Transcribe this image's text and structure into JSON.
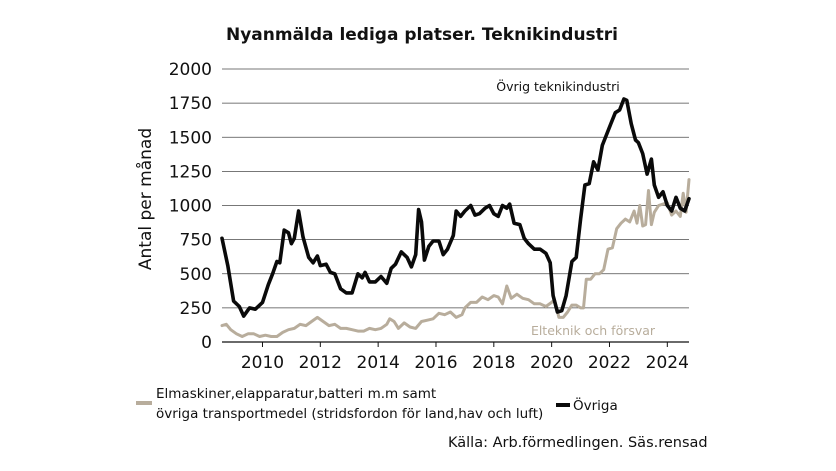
{
  "chart_data": {
    "type": "line",
    "title": "Nyanmälda lediga platser. Teknikindustri",
    "ylabel": "Antal per månad",
    "xlabel": "",
    "ylim": [
      0,
      2000
    ],
    "xlim": [
      2008.6,
      2024.75
    ],
    "yticks": [
      0,
      250,
      500,
      750,
      1000,
      1250,
      1500,
      1750,
      2000
    ],
    "xticks": [
      2010,
      2012,
      2014,
      2016,
      2018,
      2020,
      2022,
      2024
    ],
    "grid": "horizontal",
    "colors": {
      "ovriga": "#0a0a0a",
      "elteknik": "#b8ad9c"
    },
    "annotations": {
      "ovriga": "Övrig teknikindustri",
      "elteknik": "Elteknik och försvar"
    },
    "legend": {
      "elteknik_line1": "Elmaskiner,elapparatur,batteri m.m samt",
      "elteknik_line2": "övriga transportmedel (stridsfordon för land,hav och luft)",
      "ovriga": "Övriga"
    },
    "source": "Källa: Arb.förmedlingen. Säs.rensad",
    "series": [
      {
        "key": "ovriga",
        "points": [
          [
            2008.6,
            760
          ],
          [
            2008.8,
            560
          ],
          [
            2009.0,
            300
          ],
          [
            2009.2,
            260
          ],
          [
            2009.35,
            190
          ],
          [
            2009.55,
            250
          ],
          [
            2009.75,
            240
          ],
          [
            2010.0,
            290
          ],
          [
            2010.2,
            420
          ],
          [
            2010.35,
            500
          ],
          [
            2010.5,
            590
          ],
          [
            2010.6,
            580
          ],
          [
            2010.75,
            820
          ],
          [
            2010.9,
            800
          ],
          [
            2011.0,
            720
          ],
          [
            2011.1,
            760
          ],
          [
            2011.25,
            960
          ],
          [
            2011.4,
            770
          ],
          [
            2011.6,
            620
          ],
          [
            2011.75,
            580
          ],
          [
            2011.9,
            630
          ],
          [
            2012.0,
            560
          ],
          [
            2012.2,
            570
          ],
          [
            2012.35,
            510
          ],
          [
            2012.5,
            500
          ],
          [
            2012.7,
            390
          ],
          [
            2012.9,
            360
          ],
          [
            2013.1,
            360
          ],
          [
            2013.3,
            500
          ],
          [
            2013.45,
            470
          ],
          [
            2013.55,
            510
          ],
          [
            2013.7,
            440
          ],
          [
            2013.9,
            440
          ],
          [
            2014.1,
            480
          ],
          [
            2014.3,
            430
          ],
          [
            2014.45,
            540
          ],
          [
            2014.6,
            570
          ],
          [
            2014.8,
            660
          ],
          [
            2015.0,
            620
          ],
          [
            2015.15,
            550
          ],
          [
            2015.3,
            640
          ],
          [
            2015.4,
            970
          ],
          [
            2015.5,
            880
          ],
          [
            2015.6,
            600
          ],
          [
            2015.75,
            700
          ],
          [
            2015.9,
            740
          ],
          [
            2016.1,
            740
          ],
          [
            2016.25,
            640
          ],
          [
            2016.4,
            680
          ],
          [
            2016.6,
            780
          ],
          [
            2016.7,
            960
          ],
          [
            2016.85,
            920
          ],
          [
            2017.0,
            960
          ],
          [
            2017.2,
            1000
          ],
          [
            2017.35,
            930
          ],
          [
            2017.5,
            940
          ],
          [
            2017.7,
            980
          ],
          [
            2017.85,
            1000
          ],
          [
            2018.0,
            940
          ],
          [
            2018.15,
            920
          ],
          [
            2018.3,
            1000
          ],
          [
            2018.45,
            980
          ],
          [
            2018.55,
            1010
          ],
          [
            2018.7,
            870
          ],
          [
            2018.9,
            860
          ],
          [
            2019.05,
            760
          ],
          [
            2019.2,
            720
          ],
          [
            2019.4,
            680
          ],
          [
            2019.6,
            680
          ],
          [
            2019.8,
            650
          ],
          [
            2019.95,
            580
          ],
          [
            2020.05,
            340
          ],
          [
            2020.2,
            220
          ],
          [
            2020.35,
            230
          ],
          [
            2020.5,
            340
          ],
          [
            2020.7,
            590
          ],
          [
            2020.85,
            620
          ],
          [
            2021.0,
            900
          ],
          [
            2021.15,
            1150
          ],
          [
            2021.3,
            1160
          ],
          [
            2021.45,
            1320
          ],
          [
            2021.6,
            1260
          ],
          [
            2021.75,
            1440
          ],
          [
            2021.9,
            1520
          ],
          [
            2022.05,
            1600
          ],
          [
            2022.2,
            1680
          ],
          [
            2022.35,
            1700
          ],
          [
            2022.5,
            1780
          ],
          [
            2022.6,
            1770
          ],
          [
            2022.75,
            1600
          ],
          [
            2022.9,
            1480
          ],
          [
            2023.0,
            1460
          ],
          [
            2023.15,
            1380
          ],
          [
            2023.3,
            1230
          ],
          [
            2023.45,
            1340
          ],
          [
            2023.55,
            1150
          ],
          [
            2023.7,
            1060
          ],
          [
            2023.85,
            1100
          ],
          [
            2024.0,
            1000
          ],
          [
            2024.15,
            960
          ],
          [
            2024.3,
            1060
          ],
          [
            2024.45,
            980
          ],
          [
            2024.6,
            960
          ],
          [
            2024.75,
            1050
          ]
        ]
      },
      {
        "key": "elteknik",
        "points": [
          [
            2008.6,
            120
          ],
          [
            2008.75,
            130
          ],
          [
            2008.9,
            90
          ],
          [
            2009.1,
            60
          ],
          [
            2009.3,
            40
          ],
          [
            2009.5,
            60
          ],
          [
            2009.7,
            60
          ],
          [
            2009.9,
            40
          ],
          [
            2010.1,
            50
          ],
          [
            2010.3,
            40
          ],
          [
            2010.5,
            40
          ],
          [
            2010.7,
            70
          ],
          [
            2010.9,
            90
          ],
          [
            2011.1,
            100
          ],
          [
            2011.3,
            130
          ],
          [
            2011.5,
            120
          ],
          [
            2011.7,
            150
          ],
          [
            2011.9,
            180
          ],
          [
            2012.1,
            150
          ],
          [
            2012.3,
            120
          ],
          [
            2012.5,
            130
          ],
          [
            2012.7,
            100
          ],
          [
            2012.9,
            100
          ],
          [
            2013.1,
            90
          ],
          [
            2013.3,
            80
          ],
          [
            2013.5,
            80
          ],
          [
            2013.7,
            100
          ],
          [
            2013.9,
            90
          ],
          [
            2014.1,
            100
          ],
          [
            2014.3,
            130
          ],
          [
            2014.4,
            170
          ],
          [
            2014.55,
            150
          ],
          [
            2014.7,
            100
          ],
          [
            2014.9,
            140
          ],
          [
            2015.1,
            110
          ],
          [
            2015.3,
            100
          ],
          [
            2015.5,
            150
          ],
          [
            2015.7,
            160
          ],
          [
            2015.9,
            170
          ],
          [
            2016.1,
            210
          ],
          [
            2016.3,
            200
          ],
          [
            2016.5,
            220
          ],
          [
            2016.7,
            180
          ],
          [
            2016.9,
            200
          ],
          [
            2017.0,
            250
          ],
          [
            2017.2,
            290
          ],
          [
            2017.4,
            290
          ],
          [
            2017.6,
            330
          ],
          [
            2017.8,
            310
          ],
          [
            2018.0,
            340
          ],
          [
            2018.15,
            330
          ],
          [
            2018.3,
            280
          ],
          [
            2018.45,
            410
          ],
          [
            2018.6,
            320
          ],
          [
            2018.8,
            350
          ],
          [
            2019.0,
            320
          ],
          [
            2019.2,
            310
          ],
          [
            2019.4,
            280
          ],
          [
            2019.6,
            280
          ],
          [
            2019.8,
            260
          ],
          [
            2020.0,
            290
          ],
          [
            2020.1,
            310
          ],
          [
            2020.25,
            180
          ],
          [
            2020.4,
            180
          ],
          [
            2020.55,
            220
          ],
          [
            2020.7,
            270
          ],
          [
            2020.85,
            270
          ],
          [
            2021.0,
            250
          ],
          [
            2021.1,
            250
          ],
          [
            2021.2,
            460
          ],
          [
            2021.35,
            460
          ],
          [
            2021.5,
            500
          ],
          [
            2021.65,
            500
          ],
          [
            2021.8,
            530
          ],
          [
            2021.95,
            680
          ],
          [
            2022.1,
            690
          ],
          [
            2022.25,
            830
          ],
          [
            2022.4,
            870
          ],
          [
            2022.55,
            900
          ],
          [
            2022.7,
            880
          ],
          [
            2022.85,
            960
          ],
          [
            2022.95,
            870
          ],
          [
            2023.05,
            1000
          ],
          [
            2023.15,
            850
          ],
          [
            2023.25,
            860
          ],
          [
            2023.35,
            1110
          ],
          [
            2023.45,
            860
          ],
          [
            2023.55,
            950
          ],
          [
            2023.7,
            1000
          ],
          [
            2023.85,
            1010
          ],
          [
            2024.0,
            1020
          ],
          [
            2024.15,
            930
          ],
          [
            2024.3,
            960
          ],
          [
            2024.45,
            920
          ],
          [
            2024.55,
            1090
          ],
          [
            2024.65,
            950
          ],
          [
            2024.75,
            1190
          ]
        ]
      }
    ]
  }
}
